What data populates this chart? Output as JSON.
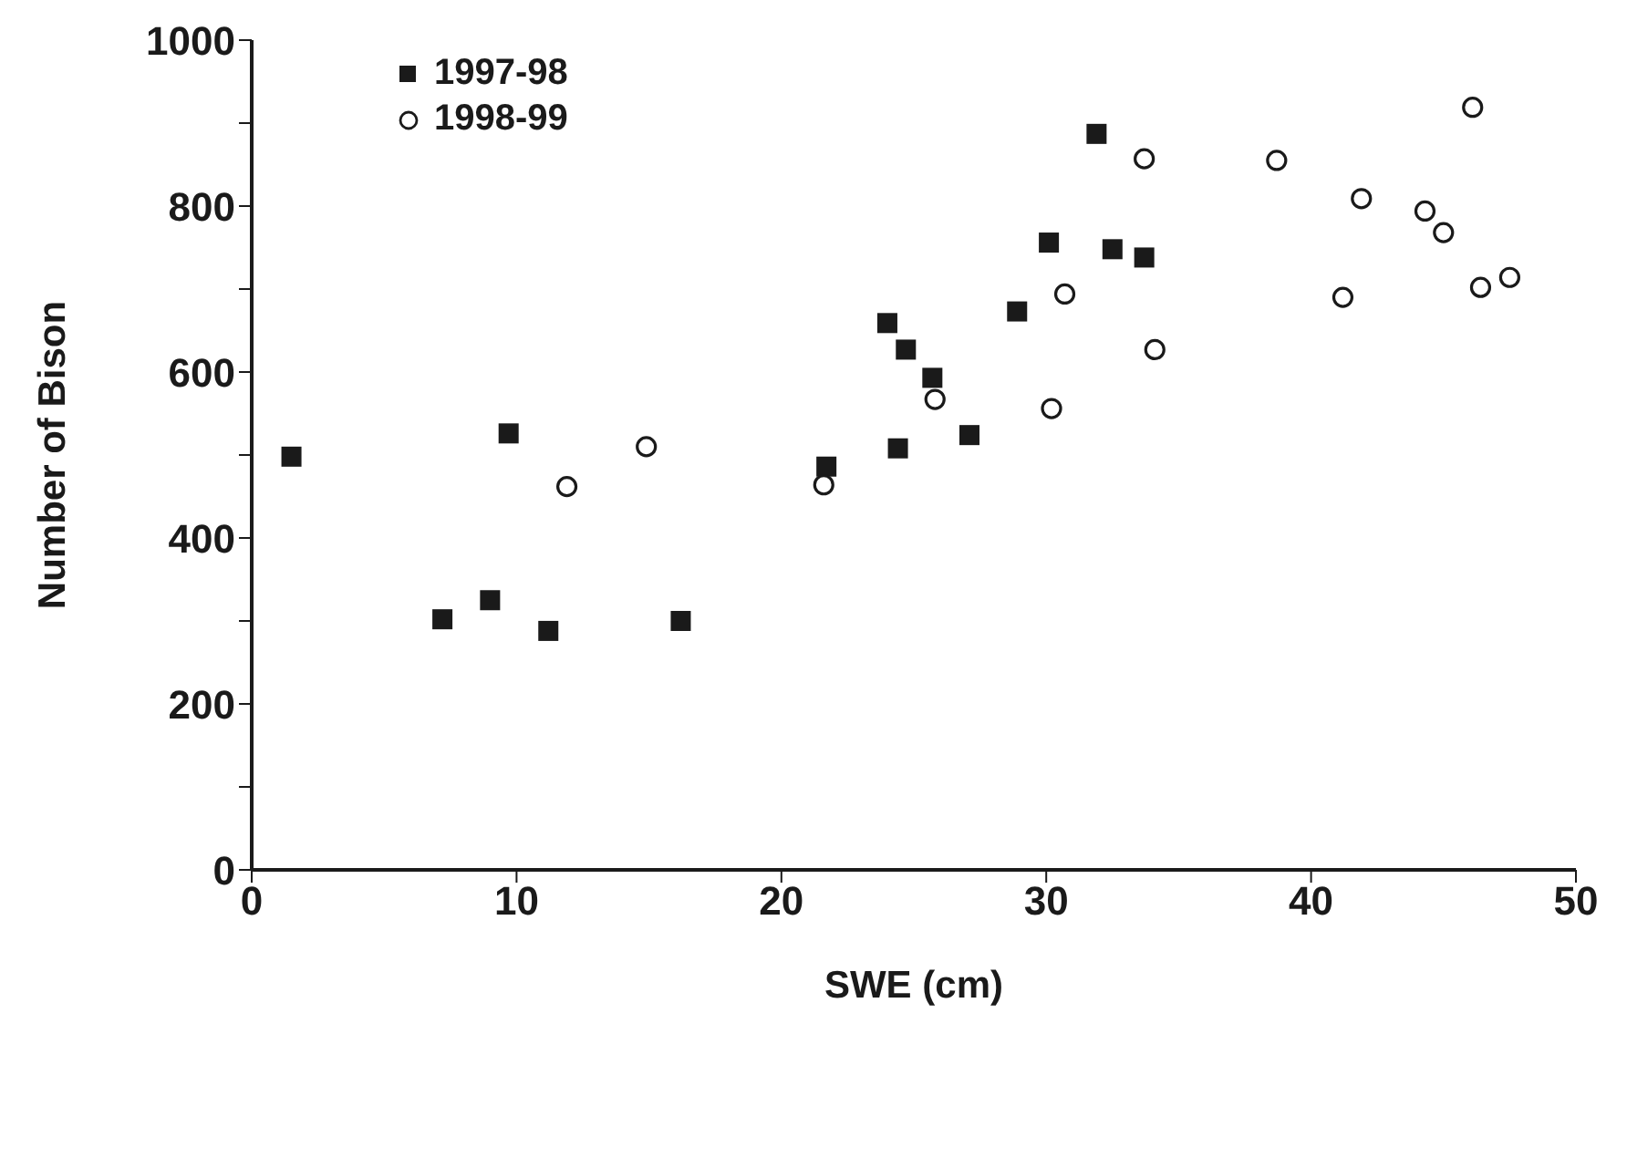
{
  "chart_data": {
    "type": "scatter",
    "xlabel": "SWE (cm)",
    "ylabel": "Number of Bison",
    "xlim": [
      0,
      50
    ],
    "xticks": [
      0,
      10,
      20,
      30,
      40,
      50
    ],
    "ylim": [
      0,
      1000
    ],
    "yticks": [
      0,
      {
        "value": 100,
        "label": null
      },
      200,
      {
        "value": 300,
        "label": null
      },
      400,
      {
        "value": 500,
        "label": null
      },
      600,
      {
        "value": 700,
        "label": null
      },
      800,
      {
        "value": 900,
        "label": null
      },
      1000
    ],
    "grid": false,
    "legend": "top left",
    "series": [
      {
        "name": "1997-98",
        "color": "#1a1a1a",
        "marker": "square",
        "x": [
          1.5,
          7.2,
          9.0,
          9.7,
          11.2,
          16.2,
          21.7,
          24.0,
          24.4,
          24.7,
          25.7,
          27.1,
          28.9,
          30.1,
          31.9,
          32.5,
          33.7
        ],
        "values": [
          498,
          302,
          325,
          526,
          288,
          300,
          486,
          659,
          508,
          627,
          593,
          524,
          673,
          756,
          887,
          748,
          738
        ]
      },
      {
        "name": "1998-99",
        "color": "#1a1a1a",
        "marker": "circle",
        "x": [
          11.9,
          14.9,
          21.6,
          25.8,
          30.2,
          30.7,
          33.7,
          34.1,
          38.7,
          41.9,
          41.2,
          44.3,
          45.0,
          46.4,
          47.5,
          46.1
        ],
        "values": [
          462,
          510,
          464,
          567,
          556,
          694,
          857,
          627,
          855,
          809,
          690,
          794,
          768,
          702,
          714,
          919
        ]
      }
    ]
  }
}
